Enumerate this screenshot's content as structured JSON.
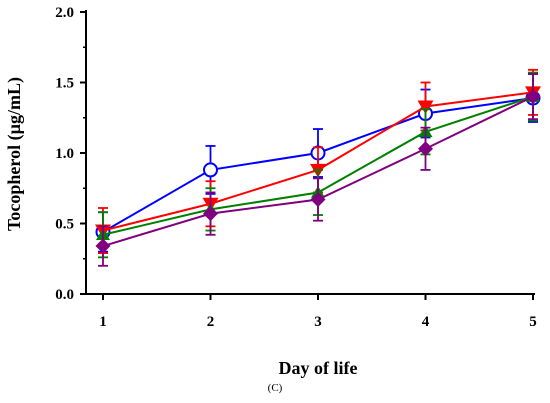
{
  "chart_data": {
    "type": "line",
    "xlabel": "Day of life",
    "ylabel": "Tocopherol (µg/mL)",
    "panel_label": "(C)",
    "x": [
      1,
      2,
      3,
      4,
      5
    ],
    "x_ticks": [
      "1",
      "2",
      "3",
      "4",
      "5"
    ],
    "y_ticks": [
      "0.0",
      "0.5",
      "1.0",
      "1.5",
      "2.0"
    ],
    "xlim": [
      1,
      5
    ],
    "ylim": [
      0,
      2
    ],
    "grid": false,
    "series": [
      {
        "marker": "open-circle",
        "color": "#0000ff",
        "values": [
          0.44,
          0.88,
          1.0,
          1.28,
          1.39
        ],
        "errors": [
          0.14,
          0.17,
          0.17,
          0.17,
          0.17
        ]
      },
      {
        "marker": "inverted-triangle",
        "color": "#ff0000",
        "values": [
          0.45,
          0.64,
          0.88,
          1.33,
          1.43
        ],
        "errors": [
          0.16,
          0.16,
          0.16,
          0.17,
          0.16
        ]
      },
      {
        "marker": "triangle",
        "color": "#008000",
        "values": [
          0.42,
          0.6,
          0.72,
          1.15,
          1.4
        ],
        "errors": [
          0.16,
          0.15,
          0.16,
          0.16,
          0.17
        ]
      },
      {
        "marker": "diamond",
        "color": "#800080",
        "values": [
          0.34,
          0.57,
          0.67,
          1.03,
          1.4
        ],
        "errors": [
          0.14,
          0.15,
          0.15,
          0.15,
          0.16
        ]
      }
    ]
  }
}
